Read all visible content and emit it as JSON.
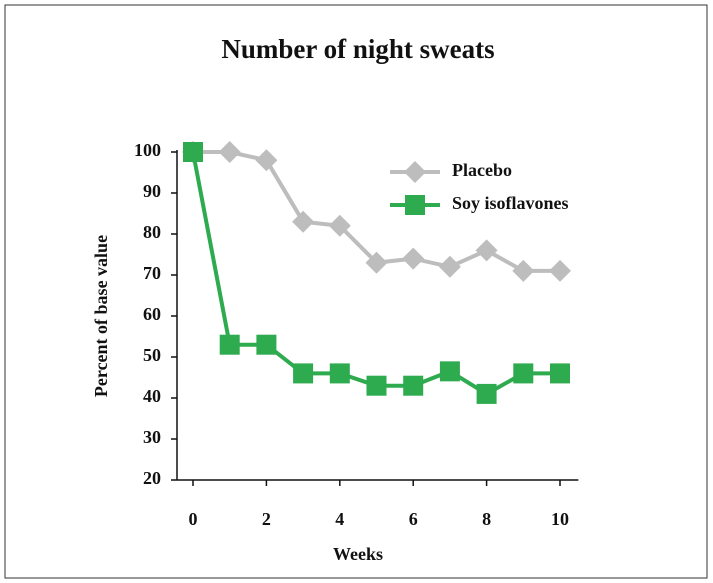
{
  "chart_data": {
    "type": "line",
    "title": "Number of night sweats",
    "x_label": "Weeks",
    "y_label": "Percent of base value",
    "x": [
      0,
      1,
      2,
      3,
      4,
      5,
      6,
      7,
      8,
      9,
      10
    ],
    "series": [
      {
        "name": "Placebo",
        "color": "#bdbdbd",
        "marker": "diamond",
        "values": [
          100,
          100,
          98,
          83,
          82,
          73,
          74,
          72,
          76,
          71,
          71
        ]
      },
      {
        "name": "Soy isoflavones",
        "color": "#2eaa4f",
        "marker": "square",
        "values": [
          100,
          53,
          53,
          46,
          46,
          43,
          43,
          46.5,
          41,
          46,
          46
        ]
      }
    ],
    "xlim": [
      -0.5,
      10.5
    ],
    "xticks": [
      0,
      2,
      4,
      6,
      8,
      10
    ],
    "ylim": [
      20,
      100
    ],
    "yticks": [
      20,
      30,
      40,
      50,
      60,
      70,
      80,
      90,
      100
    ],
    "legend": "upper right"
  }
}
